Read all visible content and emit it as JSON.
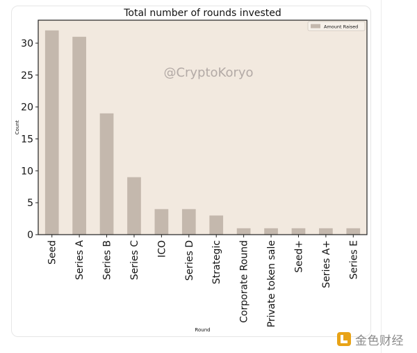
{
  "chart_data": {
    "type": "bar",
    "title": "Total number of rounds invested",
    "xlabel": "Round",
    "ylabel": "Count",
    "categories": [
      "Seed",
      "Series A",
      "Series B",
      "Series C",
      "ICO",
      "Series D",
      "Strategic",
      "Corporate Round",
      "Private token sale",
      "Seed+",
      "Series A+",
      "Series E"
    ],
    "series": [
      {
        "name": "Amount Raised",
        "values": [
          32,
          31,
          19,
          9,
          4,
          4,
          3,
          1,
          1,
          1,
          1,
          1
        ]
      }
    ],
    "ylim": [
      0,
      33.6
    ],
    "yticks": [
      0,
      5,
      10,
      15,
      20,
      25,
      30
    ],
    "legend": "top-right",
    "grid": false,
    "watermark": "@CryptoKoryo",
    "colors": {
      "plot_background": "#f2e9df",
      "bar": "#c4b8ad",
      "watermark": "#b3aaa6"
    }
  },
  "footer_brand": {
    "name": "金色财经",
    "icon": "golden-logo-icon",
    "color": "#e8a317"
  }
}
